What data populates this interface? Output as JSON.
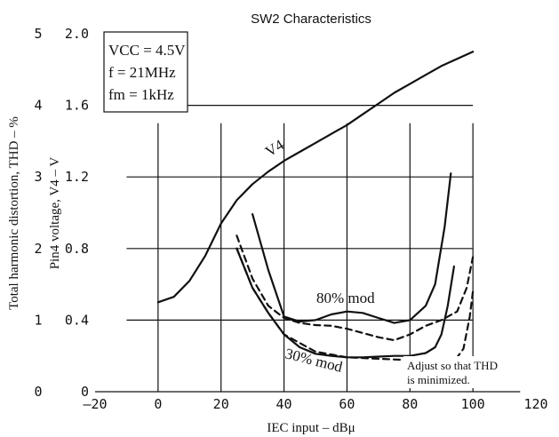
{
  "chart_data": {
    "type": "line",
    "title": "SW2 Characteristics",
    "xlabel": "IEC input  –  dBμ",
    "ylabel_left": "Total harmonic distortion, THD  –  %",
    "ylabel_right": "Pin4 voltage, V4  –  V",
    "x_ticks": [
      "–20",
      "0",
      "20",
      "40",
      "60",
      "80",
      "100",
      "120"
    ],
    "x_tick_values": [
      -20,
      0,
      20,
      40,
      60,
      80,
      100,
      120
    ],
    "thd_ticks": [
      "0",
      "1",
      "2",
      "3",
      "4",
      "5"
    ],
    "thd_tick_values": [
      0,
      1,
      2,
      3,
      4,
      5
    ],
    "v4_ticks": [
      "0",
      "0.4",
      "0.8",
      "1.2",
      "1.6",
      "2.0"
    ],
    "v4_tick_values": [
      0,
      0.4,
      0.8,
      1.2,
      1.6,
      2.0
    ],
    "xlim": [
      -20,
      120
    ],
    "ylim_thd": [
      0,
      5
    ],
    "ylim_v4": [
      0,
      2.0
    ],
    "grid": true,
    "conditions": [
      "VCC = 4.5V",
      "f = 21MHz",
      "fm = 1kHz"
    ],
    "annotations": {
      "v4": "V4",
      "mod80": "80% mod",
      "mod30": "30% mod",
      "adjust_line1": "Adjust so that THD",
      "adjust_line2": "is minimized."
    },
    "series": [
      {
        "name": "V4",
        "axis": "v4",
        "style": "solid",
        "x": [
          0,
          5,
          10,
          15,
          20,
          25,
          30,
          35,
          40,
          45,
          50,
          55,
          60,
          65,
          70,
          75,
          80,
          85,
          90,
          95,
          100
        ],
        "y": [
          0.5,
          0.53,
          0.62,
          0.76,
          0.94,
          1.07,
          1.16,
          1.23,
          1.29,
          1.34,
          1.39,
          1.44,
          1.49,
          1.55,
          1.61,
          1.67,
          1.72,
          1.77,
          1.82,
          1.86,
          1.9
        ]
      },
      {
        "name": "80% mod",
        "axis": "thd",
        "style": "solid",
        "x": [
          30,
          35,
          40,
          45,
          50,
          55,
          60,
          65,
          70,
          75,
          80,
          85,
          88,
          91,
          93
        ],
        "y": [
          2.48,
          1.7,
          1.05,
          0.98,
          1.0,
          1.08,
          1.12,
          1.1,
          1.03,
          0.96,
          1.0,
          1.2,
          1.5,
          2.3,
          3.05
        ]
      },
      {
        "name": "80% mod",
        "axis": "thd",
        "style": "dashed",
        "x": [
          25,
          30,
          35,
          40,
          45,
          50,
          55,
          60,
          65,
          70,
          75,
          80,
          85,
          90,
          95,
          98,
          100
        ],
        "y": [
          2.18,
          1.58,
          1.2,
          1.03,
          0.96,
          0.93,
          0.92,
          0.88,
          0.82,
          0.76,
          0.72,
          0.8,
          0.92,
          1.0,
          1.12,
          1.45,
          1.88
        ]
      },
      {
        "name": "30% mod",
        "axis": "thd",
        "style": "solid",
        "x": [
          25,
          30,
          35,
          40,
          45,
          50,
          55,
          60,
          65,
          70,
          75,
          80,
          85,
          88,
          90,
          92,
          94
        ],
        "y": [
          2.0,
          1.45,
          1.1,
          0.8,
          0.62,
          0.53,
          0.5,
          0.48,
          0.48,
          0.49,
          0.5,
          0.5,
          0.54,
          0.62,
          0.8,
          1.2,
          1.75
        ]
      },
      {
        "name": "30% mod",
        "axis": "thd",
        "style": "dashed",
        "x": [
          25,
          30,
          35,
          40,
          50,
          60,
          70,
          80,
          90,
          94,
          97,
          99,
          100
        ],
        "y": [
          2.0,
          1.45,
          1.1,
          0.8,
          0.56,
          0.48,
          0.46,
          0.44,
          0.4,
          0.42,
          0.6,
          1.05,
          1.4
        ]
      }
    ]
  }
}
